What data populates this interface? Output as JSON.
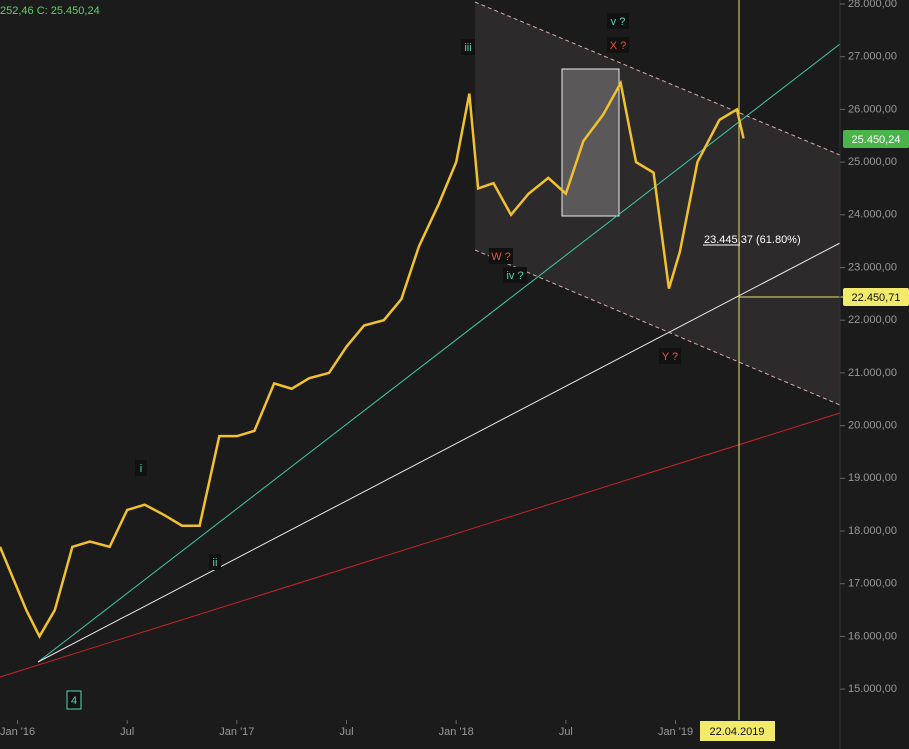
{
  "chart_data": {
    "type": "line",
    "info": "252,46  C: 25.450,24",
    "x": [
      2015.92,
      2016.04,
      2016.1,
      2016.17,
      2016.25,
      2016.33,
      2016.42,
      2016.5,
      2016.58,
      2016.67,
      2016.75,
      2016.83,
      2016.92,
      2017.0,
      2017.08,
      2017.17,
      2017.25,
      2017.33,
      2017.42,
      2017.5,
      2017.58,
      2017.67,
      2017.75,
      2017.83,
      2017.92,
      2018.0,
      2018.06,
      2018.1,
      2018.17,
      2018.25,
      2018.33,
      2018.42,
      2018.5,
      2018.58,
      2018.67,
      2018.75,
      2018.82,
      2018.9,
      2018.97,
      2019.02,
      2019.1,
      2019.2,
      2019.28,
      2019.31
    ],
    "values": [
      17700,
      16500,
      16000,
      16500,
      17700,
      17800,
      17700,
      18400,
      18500,
      18300,
      18100,
      18100,
      19800,
      19800,
      19900,
      20800,
      20700,
      20900,
      21000,
      21500,
      21900,
      22000,
      22400,
      23400,
      24200,
      25000,
      26300,
      24500,
      24600,
      24000,
      24400,
      24700,
      24400,
      25400,
      25900,
      26500,
      25000,
      24800,
      22600,
      23300,
      25000,
      25800,
      26000,
      25450
    ],
    "color": "#f2c12e",
    "xlim": [
      2015.92,
      2019.75
    ],
    "ylim": [
      14414,
      28076
    ],
    "xticks": [
      {
        "value": 2016.0,
        "label": "Jan '16"
      },
      {
        "value": 2016.5,
        "label": "Jul"
      },
      {
        "value": 2017.0,
        "label": "Jan '17"
      },
      {
        "value": 2017.5,
        "label": "Jul"
      },
      {
        "value": 2018.0,
        "label": "Jan '18"
      },
      {
        "value": 2018.5,
        "label": "Jul"
      },
      {
        "value": 2019.0,
        "label": "Jan '19"
      }
    ],
    "yticks": [
      {
        "value": 15000,
        "label": "15.000,00"
      },
      {
        "value": 16000,
        "label": "16.000,00"
      },
      {
        "value": 17000,
        "label": "17.000,00"
      },
      {
        "value": 18000,
        "label": "18.000,00"
      },
      {
        "value": 19000,
        "label": "19.000,00"
      },
      {
        "value": 20000,
        "label": "20.000,00"
      },
      {
        "value": 21000,
        "label": "21.000,00"
      },
      {
        "value": 22000,
        "label": "22.000,00"
      },
      {
        "value": 23000,
        "label": "23.000,00"
      },
      {
        "value": 24000,
        "label": "24.000,00"
      },
      {
        "value": 25000,
        "label": "25.000,00"
      },
      {
        "value": 26000,
        "label": "26.000,00"
      },
      {
        "value": 27000,
        "label": "27.000,00"
      },
      {
        "value": 28000,
        "label": "28.000,00"
      }
    ],
    "annotations": [
      "iii",
      "v ?",
      "X ?",
      "W ?",
      "iv ?",
      "Y ?",
      "i",
      "ii",
      "4",
      "23.445,37 (61.80%)",
      "25.450,24",
      "22.450,71",
      "22.04.2019"
    ]
  }
}
